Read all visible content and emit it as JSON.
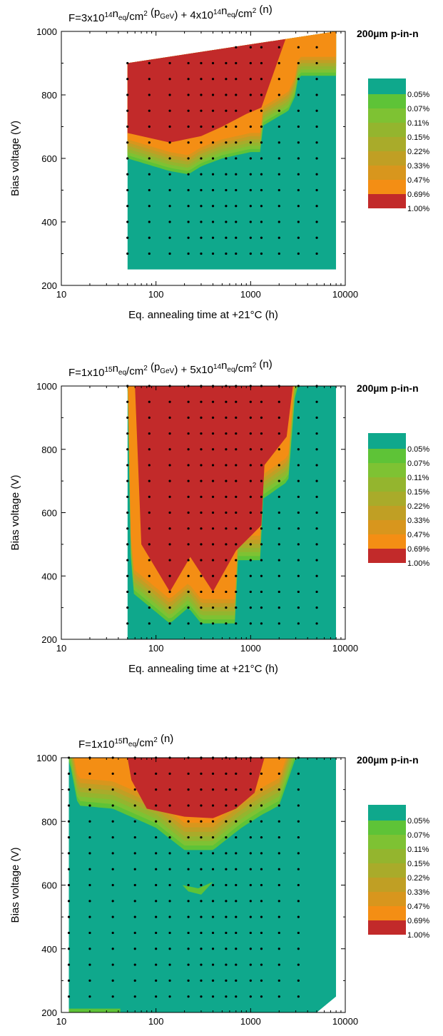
{
  "colors": {
    "levels": [
      "#0fa88c",
      "#5ec337",
      "#7ec233",
      "#94b52e",
      "#a9ab2a",
      "#c09f24",
      "#d8961d",
      "#f48e14",
      "#c22a2a"
    ]
  },
  "chart_data": [
    {
      "type": "heatmap",
      "title_parts": [
        {
          "t": "F=3x10",
          "s": "n"
        },
        {
          "t": "14",
          "s": "sup"
        },
        {
          "t": "n",
          "s": "n"
        },
        {
          "t": "eq",
          "s": "sub"
        },
        {
          "t": "/cm",
          "s": "n"
        },
        {
          "t": "2",
          "s": "sup"
        },
        {
          "t": " (p",
          "s": "n"
        },
        {
          "t": "GeV",
          "s": "sub"
        },
        {
          "t": ") + 4x10",
          "s": "n"
        },
        {
          "t": "14",
          "s": "sup"
        },
        {
          "t": "n",
          "s": "n"
        },
        {
          "t": "eq",
          "s": "sub"
        },
        {
          "t": "/cm",
          "s": "n"
        },
        {
          "t": "2",
          "s": "sup"
        },
        {
          "t": " (n)",
          "s": "n"
        }
      ],
      "label": "200µm p-in-n",
      "xlabel": "Eq. annealing time at +21°C (h)",
      "ylabel": "Bias voltage (V)",
      "xscale": "log",
      "xlim": [
        10,
        10000
      ],
      "ylim": [
        200,
        1000
      ],
      "xticks": [
        10,
        100,
        1000,
        10000
      ],
      "yticks": [
        200,
        400,
        600,
        800,
        1000
      ],
      "legend_levels": [
        "0.05%",
        "0.07%",
        "0.11%",
        "0.15%",
        "0.22%",
        "0.33%",
        "0.47%",
        "0.69%",
        "1.00%"
      ],
      "data_region": [
        [
          50,
          250
        ],
        [
          8000,
          250
        ],
        [
          8000,
          1000
        ],
        [
          50,
          900
        ]
      ],
      "transition_voltage": [
        [
          50,
          600
        ],
        [
          140,
          560
        ],
        [
          220,
          550
        ],
        [
          300,
          575
        ],
        [
          500,
          600
        ],
        [
          1000,
          620
        ],
        [
          1300,
          620
        ],
        [
          1300,
          700
        ],
        [
          2500,
          750
        ],
        [
          3000,
          800
        ],
        [
          3200,
          860
        ],
        [
          5000,
          860
        ],
        [
          8000,
          860
        ]
      ],
      "max_region": [
        [
          50,
          900
        ],
        [
          1500,
          1000
        ],
        [
          2500,
          1000
        ],
        [
          1800,
          880
        ],
        [
          1300,
          760
        ],
        [
          900,
          740
        ],
        [
          500,
          700
        ],
        [
          300,
          670
        ],
        [
          140,
          650
        ],
        [
          50,
          680
        ]
      ],
      "band_width": 70,
      "measurement_points": {
        "x": [
          50,
          85,
          140,
          220,
          300,
          400,
          550,
          700,
          1000,
          1300,
          2000,
          3200,
          5000,
          8000
        ],
        "y": [
          250,
          300,
          350,
          400,
          450,
          500,
          550,
          600,
          650,
          700,
          750,
          800,
          850,
          900,
          950,
          1000
        ]
      }
    },
    {
      "type": "heatmap",
      "title_parts": [
        {
          "t": "F=1x10",
          "s": "n"
        },
        {
          "t": "15",
          "s": "sup"
        },
        {
          "t": "n",
          "s": "n"
        },
        {
          "t": "eq",
          "s": "sub"
        },
        {
          "t": "/cm",
          "s": "n"
        },
        {
          "t": "2",
          "s": "sup"
        },
        {
          "t": " (p",
          "s": "n"
        },
        {
          "t": "GeV",
          "s": "sub"
        },
        {
          "t": ") + 5x10",
          "s": "n"
        },
        {
          "t": "14",
          "s": "sup"
        },
        {
          "t": "n",
          "s": "n"
        },
        {
          "t": "eq",
          "s": "sub"
        },
        {
          "t": "/cm",
          "s": "n"
        },
        {
          "t": "2",
          "s": "sup"
        },
        {
          "t": " (n)",
          "s": "n"
        }
      ],
      "label": "200µm p-in-n",
      "xlabel": "Eq. annealing time at +21°C (h)",
      "ylabel": "Bias voltage (V)",
      "xscale": "log",
      "xlim": [
        10,
        10000
      ],
      "ylim": [
        200,
        1000
      ],
      "xticks": [
        10,
        100,
        1000,
        10000
      ],
      "yticks": [
        200,
        400,
        600,
        800,
        1000
      ],
      "legend_levels": [
        "0.05%",
        "0.07%",
        "0.11%",
        "0.15%",
        "0.22%",
        "0.33%",
        "0.47%",
        "0.69%",
        "1.00%"
      ],
      "data_region": [
        [
          50,
          200
        ],
        [
          8000,
          200
        ],
        [
          8000,
          1000
        ],
        [
          50,
          1000
        ]
      ],
      "transition_voltage": [
        [
          50,
          1000
        ],
        [
          55,
          350
        ],
        [
          140,
          250
        ],
        [
          220,
          300
        ],
        [
          300,
          250
        ],
        [
          700,
          250
        ],
        [
          700,
          450
        ],
        [
          1300,
          450
        ],
        [
          1300,
          640
        ],
        [
          2500,
          700
        ],
        [
          3000,
          1000
        ],
        [
          8000,
          1000
        ]
      ],
      "max_region": [
        [
          60,
          1000
        ],
        [
          2800,
          1000
        ],
        [
          2400,
          840
        ],
        [
          1400,
          750
        ],
        [
          1300,
          560
        ],
        [
          700,
          480
        ],
        [
          400,
          350
        ],
        [
          230,
          460
        ],
        [
          140,
          350
        ],
        [
          70,
          500
        ]
      ],
      "band_width": 90,
      "measurement_points": {
        "x": [
          50,
          85,
          140,
          220,
          300,
          400,
          550,
          700,
          1000,
          1300,
          2000,
          3200,
          5000,
          8000
        ],
        "y": [
          250,
          300,
          350,
          400,
          450,
          500,
          550,
          600,
          650,
          700,
          750,
          800,
          850,
          900,
          950,
          1000
        ]
      }
    },
    {
      "type": "heatmap",
      "title_parts": [
        {
          "t": "F=1x10",
          "s": "n"
        },
        {
          "t": "15",
          "s": "sup"
        },
        {
          "t": "n",
          "s": "n"
        },
        {
          "t": "eq",
          "s": "sub"
        },
        {
          "t": "/cm",
          "s": "n"
        },
        {
          "t": "2",
          "s": "sup"
        },
        {
          "t": " (n)",
          "s": "n"
        }
      ],
      "label": "200µm p-in-n",
      "xlabel": "Eq. annealing time at +21°C (h)",
      "ylabel": "Bias voltage (V)",
      "xscale": "log",
      "xlim": [
        10,
        10000
      ],
      "ylim": [
        200,
        1000
      ],
      "xticks": [
        10,
        100,
        1000,
        10000
      ],
      "yticks": [
        200,
        400,
        600,
        800,
        1000
      ],
      "legend_levels": [
        "0.05%",
        "0.07%",
        "0.11%",
        "0.15%",
        "0.22%",
        "0.33%",
        "0.47%",
        "0.69%",
        "1.00%"
      ],
      "data_region": [
        [
          12,
          200
        ],
        [
          5000,
          200
        ],
        [
          8000,
          250
        ],
        [
          8000,
          1000
        ],
        [
          12,
          1000
        ]
      ],
      "transition_voltage": [
        [
          12,
          1000
        ],
        [
          15,
          850
        ],
        [
          35,
          840
        ],
        [
          100,
          780
        ],
        [
          200,
          710
        ],
        [
          400,
          710
        ],
        [
          800,
          780
        ],
        [
          1300,
          820
        ],
        [
          2000,
          850
        ],
        [
          3000,
          1000
        ],
        [
          8000,
          1000
        ]
      ],
      "max_region": [
        [
          50,
          1000
        ],
        [
          1400,
          1000
        ],
        [
          1100,
          890
        ],
        [
          700,
          840
        ],
        [
          400,
          810
        ],
        [
          200,
          815
        ],
        [
          80,
          840
        ],
        [
          55,
          930
        ]
      ],
      "band_width": 100,
      "extra_patches": [
        {
          "level": 1,
          "points": [
            [
              190,
              600
            ],
            [
              280,
              590
            ],
            [
              400,
              610
            ],
            [
              300,
              570
            ],
            [
              220,
              580
            ]
          ]
        },
        {
          "level": 1,
          "points": [
            [
              12,
              200
            ],
            [
              42,
              200
            ],
            [
              42,
              212
            ],
            [
              12,
              212
            ]
          ]
        }
      ],
      "measurement_points": {
        "x": [
          12,
          20,
          35,
          60,
          100,
          140,
          220,
          300,
          400,
          550,
          700,
          1000,
          1300,
          2000,
          3200,
          8000
        ],
        "y": [
          250,
          300,
          350,
          400,
          450,
          500,
          550,
          600,
          650,
          700,
          750,
          800,
          850,
          900,
          950,
          1000
        ]
      }
    }
  ]
}
